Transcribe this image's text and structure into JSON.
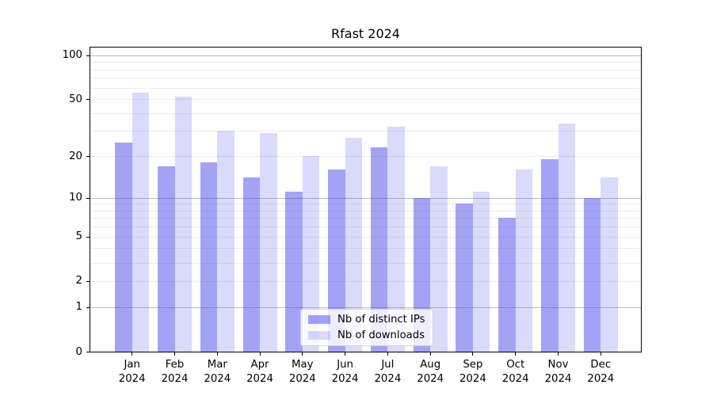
{
  "chart_data": {
    "type": "bar",
    "title": "Rfast 2024",
    "categories": [
      "Jan 2024",
      "Feb 2024",
      "Mar 2024",
      "Apr 2024",
      "May 2024",
      "Jun 2024",
      "Jul 2024",
      "Aug 2024",
      "Sep 2024",
      "Oct 2024",
      "Nov 2024",
      "Dec 2024"
    ],
    "series": [
      {
        "name": "Nb of distinct IPs",
        "key": "distinct-ips",
        "color": "rgba(60,60,235,0.47)",
        "values": [
          25,
          17,
          18,
          14,
          11,
          16,
          23,
          10,
          9,
          7,
          19,
          10
        ]
      },
      {
        "name": "Nb of downloads",
        "key": "downloads",
        "color": "rgba(60,60,235,0.19)",
        "values": [
          55,
          52,
          30,
          29,
          20,
          27,
          32,
          17,
          11,
          16,
          34,
          14
        ]
      }
    ],
    "yscale": "log1p",
    "ylim": [
      0,
      115
    ],
    "ytick_values": [
      100,
      50,
      20,
      10,
      5,
      2,
      1,
      0
    ],
    "ytick_labels": [
      "100",
      "50",
      "20",
      "10",
      "5",
      "2",
      "1",
      "0"
    ],
    "grid": "both",
    "grid_major_values": [
      1,
      10,
      100
    ],
    "grid_minor_values": [
      2,
      3,
      4,
      5,
      6,
      7,
      8,
      9,
      20,
      30,
      40,
      50,
      60,
      70,
      80,
      90
    ],
    "legend_position": "lower center",
    "xlabel": "",
    "ylabel": ""
  },
  "colors": {
    "axis": "#000000",
    "grid_major": "#bdbdbd",
    "grid_minor": "#ececec",
    "background": "#ffffff"
  }
}
